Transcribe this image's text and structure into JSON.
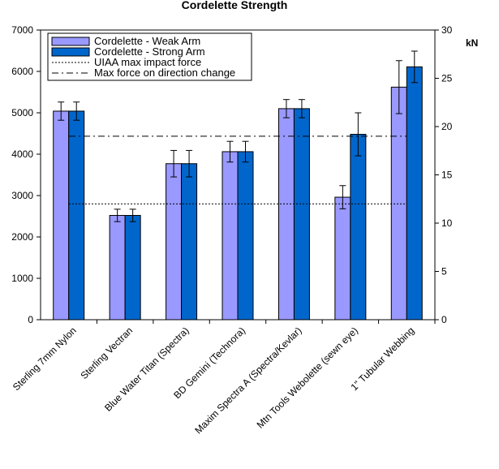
{
  "chart_data": {
    "type": "bar",
    "title": "Cordelette Strength",
    "categories": [
      "Sterling 7mm Nylon",
      "Sterling Vectran",
      "Blue Water Titan (Spectra)",
      "BD Gemini (Technora)",
      "Maxim Spectra A (Spectra/Kevlar)",
      "Mtn Tools Webolette (sewn eye)",
      "1\" Tubular Webbing"
    ],
    "series": [
      {
        "name": "Cordelette - Weak Arm",
        "color": "#9999ff",
        "values": [
          5040,
          2520,
          3770,
          4060,
          5100,
          2960,
          5620
        ],
        "error": [
          220,
          150,
          320,
          250,
          220,
          280,
          640
        ]
      },
      {
        "name": "Cordelette - Strong Arm",
        "color": "#0066cc",
        "values": [
          5040,
          2520,
          3770,
          4060,
          5100,
          4480,
          6110
        ],
        "error": [
          220,
          150,
          320,
          250,
          220,
          520,
          380
        ]
      }
    ],
    "reference_lines": [
      {
        "name": "UIAA max impact force",
        "value_kN": 12,
        "style": "dotted"
      },
      {
        "name": "Max force on direction change",
        "value_kN": 19,
        "style": "dash-dot"
      }
    ],
    "ylim": [
      0,
      7000
    ],
    "yticks": [
      0,
      1000,
      2000,
      3000,
      4000,
      5000,
      6000,
      7000
    ],
    "y2label": "kN",
    "y2lim": [
      0,
      30
    ],
    "y2ticks": [
      0,
      5,
      10,
      15,
      20,
      25,
      30
    ],
    "legend_position": "top-left",
    "grid": false
  }
}
